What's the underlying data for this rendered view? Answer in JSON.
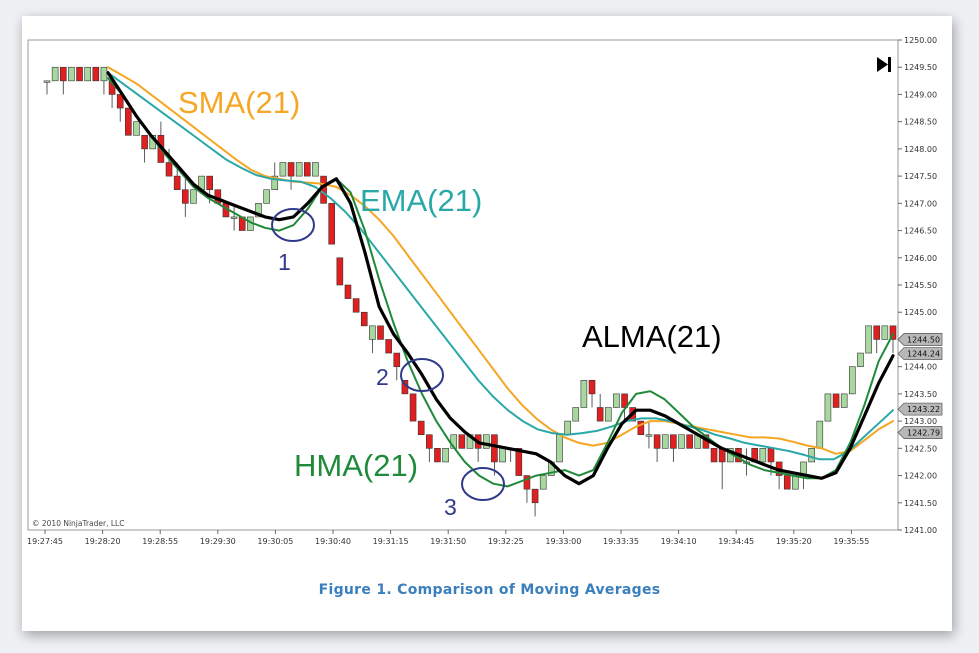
{
  "caption": "Figure 1. Comparison of Moving  Averages",
  "copyright": "© 2010 NinjaTrader, LLC",
  "end_icon": "skip-to-end-icon",
  "chart_data": {
    "type": "line",
    "y_ticks": [
      "1250.00",
      "1249.50",
      "1249.00",
      "1248.50",
      "1248.00",
      "1247.50",
      "1247.00",
      "1246.50",
      "1246.00",
      "1245.50",
      "1245.00",
      "1244.50",
      "1244.00",
      "1243.50",
      "1243.00",
      "1242.50",
      "1242.00",
      "1241.50",
      "1241.00"
    ],
    "ylim": [
      1241.0,
      1250.0
    ],
    "x_ticks": [
      "19:27:45",
      "19:28:20",
      "19:28:55",
      "19:29:30",
      "19:30:05",
      "19:30:40",
      "19:31:15",
      "19:31:50",
      "19:32:25",
      "19:33:00",
      "19:33:35",
      "19:34:10",
      "19:34:45",
      "19:35:20",
      "19:35:55"
    ],
    "bars": [
      [
        1249.25,
        1249.25,
        1249.0,
        1249.25
      ],
      [
        1249.25,
        1249.5,
        1249.25,
        1249.5
      ],
      [
        1249.5,
        1249.25,
        1249.0,
        1249.5
      ],
      [
        1249.25,
        1249.5,
        1249.25,
        1249.5
      ],
      [
        1249.5,
        1249.25,
        1249.25,
        1249.5
      ],
      [
        1249.25,
        1249.5,
        1249.25,
        1249.5
      ],
      [
        1249.5,
        1249.25,
        1249.25,
        1249.5
      ],
      [
        1249.25,
        1249.5,
        1249.0,
        1249.5
      ],
      [
        1249.25,
        1249.0,
        1248.75,
        1249.25
      ],
      [
        1249.0,
        1248.75,
        1248.5,
        1249.0
      ],
      [
        1248.75,
        1248.25,
        1248.25,
        1248.75
      ],
      [
        1248.25,
        1248.5,
        1248.25,
        1248.5
      ],
      [
        1248.25,
        1248.0,
        1247.75,
        1248.25
      ],
      [
        1248.0,
        1248.25,
        1248.0,
        1248.25
      ],
      [
        1248.25,
        1247.75,
        1247.75,
        1248.5
      ],
      [
        1247.75,
        1247.5,
        1247.5,
        1248.0
      ],
      [
        1247.5,
        1247.25,
        1247.25,
        1247.75
      ],
      [
        1247.25,
        1247.0,
        1246.75,
        1247.5
      ],
      [
        1247.0,
        1247.25,
        1247.0,
        1247.25
      ],
      [
        1247.25,
        1247.5,
        1247.25,
        1247.5
      ],
      [
        1247.5,
        1247.25,
        1247.0,
        1247.5
      ],
      [
        1247.25,
        1247.0,
        1247.0,
        1247.25
      ],
      [
        1247.0,
        1246.75,
        1246.75,
        1247.0
      ],
      [
        1246.75,
        1246.75,
        1246.5,
        1247.0
      ],
      [
        1246.75,
        1246.5,
        1246.5,
        1246.75
      ],
      [
        1246.5,
        1246.75,
        1246.5,
        1246.75
      ],
      [
        1246.75,
        1247.0,
        1246.75,
        1247.0
      ],
      [
        1247.0,
        1247.25,
        1247.0,
        1247.25
      ],
      [
        1247.25,
        1247.5,
        1247.25,
        1247.75
      ],
      [
        1247.5,
        1247.75,
        1247.5,
        1247.75
      ],
      [
        1247.75,
        1247.5,
        1247.25,
        1247.75
      ],
      [
        1247.5,
        1247.75,
        1247.5,
        1247.75
      ],
      [
        1247.75,
        1247.5,
        1247.5,
        1247.75
      ],
      [
        1247.5,
        1247.75,
        1247.5,
        1247.75
      ],
      [
        1247.5,
        1247.0,
        1247.0,
        1247.5
      ],
      [
        1247.0,
        1246.25,
        1246.25,
        1247.0
      ],
      [
        1246.0,
        1245.5,
        1245.5,
        1246.0
      ],
      [
        1245.5,
        1245.25,
        1245.25,
        1245.5
      ],
      [
        1245.25,
        1245.0,
        1245.0,
        1245.25
      ],
      [
        1245.0,
        1244.75,
        1244.75,
        1245.0
      ],
      [
        1244.5,
        1244.75,
        1244.25,
        1244.75
      ],
      [
        1244.75,
        1244.5,
        1244.5,
        1244.75
      ],
      [
        1244.5,
        1244.25,
        1244.25,
        1244.5
      ],
      [
        1244.25,
        1244.0,
        1243.75,
        1244.25
      ],
      [
        1243.75,
        1243.5,
        1243.5,
        1243.75
      ],
      [
        1243.5,
        1243.0,
        1243.0,
        1243.5
      ],
      [
        1243.0,
        1242.75,
        1242.75,
        1243.0
      ],
      [
        1242.75,
        1242.5,
        1242.25,
        1242.75
      ],
      [
        1242.5,
        1242.25,
        1242.25,
        1242.5
      ],
      [
        1242.25,
        1242.5,
        1242.25,
        1242.5
      ],
      [
        1242.5,
        1242.75,
        1242.5,
        1242.75
      ],
      [
        1242.75,
        1242.5,
        1242.5,
        1242.75
      ],
      [
        1242.5,
        1242.75,
        1242.5,
        1242.75
      ],
      [
        1242.75,
        1242.5,
        1242.25,
        1242.75
      ],
      [
        1242.5,
        1242.75,
        1242.5,
        1242.75
      ],
      [
        1242.75,
        1242.25,
        1242.0,
        1242.75
      ],
      [
        1242.25,
        1242.5,
        1242.25,
        1242.5
      ],
      [
        1242.5,
        1242.5,
        1242.25,
        1242.5
      ],
      [
        1242.5,
        1242.0,
        1242.0,
        1242.5
      ],
      [
        1242.0,
        1241.75,
        1241.5,
        1242.0
      ],
      [
        1241.75,
        1241.5,
        1241.25,
        1241.75
      ],
      [
        1241.75,
        1242.0,
        1241.75,
        1242.0
      ],
      [
        1242.0,
        1242.25,
        1242.0,
        1242.25
      ],
      [
        1242.25,
        1242.75,
        1242.25,
        1242.75
      ],
      [
        1242.75,
        1243.0,
        1242.75,
        1243.0
      ],
      [
        1243.0,
        1243.25,
        1243.0,
        1243.25
      ],
      [
        1243.25,
        1243.75,
        1243.25,
        1243.75
      ],
      [
        1243.75,
        1243.5,
        1243.25,
        1243.75
      ],
      [
        1243.25,
        1243.0,
        1243.0,
        1243.5
      ],
      [
        1243.0,
        1243.25,
        1243.0,
        1243.25
      ],
      [
        1243.25,
        1243.5,
        1243.25,
        1243.5
      ],
      [
        1243.5,
        1243.25,
        1243.0,
        1243.5
      ],
      [
        1243.25,
        1243.0,
        1243.0,
        1243.25
      ],
      [
        1243.0,
        1242.75,
        1242.75,
        1243.0
      ],
      [
        1242.75,
        1242.75,
        1242.5,
        1243.0
      ],
      [
        1242.75,
        1242.5,
        1242.25,
        1242.75
      ],
      [
        1242.5,
        1242.75,
        1242.5,
        1242.75
      ],
      [
        1242.75,
        1242.5,
        1242.25,
        1242.75
      ],
      [
        1242.5,
        1242.75,
        1242.5,
        1242.75
      ],
      [
        1242.75,
        1242.5,
        1242.5,
        1242.75
      ],
      [
        1242.5,
        1242.75,
        1242.5,
        1242.75
      ],
      [
        1242.75,
        1242.5,
        1242.5,
        1242.75
      ],
      [
        1242.5,
        1242.25,
        1242.25,
        1242.5
      ],
      [
        1242.5,
        1242.25,
        1241.75,
        1242.5
      ],
      [
        1242.25,
        1242.5,
        1242.25,
        1242.5
      ],
      [
        1242.5,
        1242.25,
        1242.25,
        1242.5
      ],
      [
        1242.25,
        1242.25,
        1242.0,
        1242.5
      ],
      [
        1242.5,
        1242.25,
        1242.25,
        1242.5
      ],
      [
        1242.25,
        1242.5,
        1242.25,
        1242.5
      ],
      [
        1242.5,
        1242.25,
        1242.0,
        1242.5
      ],
      [
        1242.25,
        1242.0,
        1241.75,
        1242.25
      ],
      [
        1242.0,
        1241.75,
        1241.75,
        1242.0
      ],
      [
        1241.75,
        1242.0,
        1241.75,
        1242.0
      ],
      [
        1242.0,
        1242.25,
        1241.75,
        1242.25
      ],
      [
        1242.25,
        1242.5,
        1242.25,
        1242.5
      ],
      [
        1242.5,
        1243.0,
        1242.5,
        1243.0
      ],
      [
        1243.0,
        1243.5,
        1243.0,
        1243.5
      ],
      [
        1243.5,
        1243.25,
        1243.25,
        1243.5
      ],
      [
        1243.25,
        1243.5,
        1243.25,
        1243.5
      ],
      [
        1243.5,
        1244.0,
        1243.5,
        1244.0
      ],
      [
        1244.0,
        1244.25,
        1244.0,
        1244.25
      ],
      [
        1244.25,
        1244.75,
        1244.25,
        1244.75
      ],
      [
        1244.75,
        1244.5,
        1244.25,
        1244.75
      ],
      [
        1244.5,
        1244.75,
        1244.5,
        1244.75
      ],
      [
        1244.75,
        1244.5,
        1244.25,
        1244.75
      ]
    ],
    "series": [
      {
        "name": "SMA(21)",
        "color": "#f5a623",
        "values": [
          1249.5,
          1249.35,
          1249.2,
          1249.0,
          1248.8,
          1248.6,
          1248.4,
          1248.2,
          1248.0,
          1247.8,
          1247.62,
          1247.5,
          1247.45,
          1247.4,
          1247.38,
          1247.36,
          1247.3,
          1247.15,
          1246.95,
          1246.7,
          1246.4,
          1246.05,
          1245.7,
          1245.35,
          1245.0,
          1244.65,
          1244.3,
          1243.95,
          1243.6,
          1243.3,
          1243.05,
          1242.85,
          1242.7,
          1242.6,
          1242.55,
          1242.6,
          1242.75,
          1242.9,
          1243.0,
          1243.0,
          1242.95,
          1242.9,
          1242.85,
          1242.8,
          1242.75,
          1242.7,
          1242.7,
          1242.68,
          1242.62,
          1242.55,
          1242.5,
          1242.4,
          1242.45,
          1242.65,
          1242.85,
          1243.0
        ]
      },
      {
        "name": "EMA(21)",
        "color": "#2aa8a8",
        "values": [
          1249.4,
          1249.2,
          1249.0,
          1248.8,
          1248.6,
          1248.4,
          1248.2,
          1248.0,
          1247.8,
          1247.65,
          1247.52,
          1247.45,
          1247.42,
          1247.4,
          1247.3,
          1247.1,
          1246.85,
          1246.55,
          1246.2,
          1245.85,
          1245.5,
          1245.15,
          1244.8,
          1244.45,
          1244.1,
          1243.75,
          1243.45,
          1243.2,
          1243.0,
          1242.85,
          1242.78,
          1242.75,
          1242.78,
          1242.82,
          1242.9,
          1243.0,
          1243.05,
          1243.05,
          1243.0,
          1242.92,
          1242.85,
          1242.75,
          1242.68,
          1242.6,
          1242.55,
          1242.5,
          1242.45,
          1242.38,
          1242.3,
          1242.3,
          1242.45,
          1242.7,
          1242.95,
          1243.2
        ]
      },
      {
        "name": "HMA(21)",
        "color": "#1f8a3a",
        "values": [
          1249.3,
          1249.0,
          1248.6,
          1248.25,
          1247.9,
          1247.6,
          1247.3,
          1247.1,
          1246.95,
          1246.8,
          1246.65,
          1246.55,
          1246.5,
          1246.6,
          1246.9,
          1247.3,
          1247.45,
          1247.2,
          1246.5,
          1245.6,
          1244.8,
          1244.1,
          1243.5,
          1243.0,
          1242.6,
          1242.25,
          1242.0,
          1241.85,
          1241.8,
          1241.9,
          1242.0,
          1242.05,
          1242.1,
          1242.0,
          1242.1,
          1242.6,
          1243.15,
          1243.5,
          1243.55,
          1243.4,
          1243.15,
          1242.9,
          1242.7,
          1242.5,
          1242.35,
          1242.2,
          1242.1,
          1242.05,
          1242.0,
          1241.95,
          1241.95,
          1242.1,
          1242.6,
          1243.3,
          1244.1,
          1244.6
        ]
      },
      {
        "name": "ALMA(21)",
        "color": "#000000",
        "values": [
          1249.4,
          1249.0,
          1248.6,
          1248.25,
          1247.95,
          1247.65,
          1247.35,
          1247.15,
          1247.05,
          1246.95,
          1246.85,
          1246.75,
          1246.7,
          1246.75,
          1247.0,
          1247.3,
          1247.45,
          1247.0,
          1246.1,
          1245.1,
          1244.6,
          1244.25,
          1243.85,
          1243.4,
          1243.05,
          1242.8,
          1242.6,
          1242.55,
          1242.5,
          1242.45,
          1242.4,
          1242.25,
          1242.0,
          1241.85,
          1242.0,
          1242.5,
          1242.95,
          1243.2,
          1243.2,
          1243.1,
          1242.95,
          1242.8,
          1242.65,
          1242.5,
          1242.4,
          1242.3,
          1242.2,
          1242.1,
          1242.05,
          1242.0,
          1241.95,
          1242.05,
          1242.5,
          1243.1,
          1243.7,
          1244.2
        ]
      }
    ],
    "annotations": [
      {
        "text": "SMA(21)",
        "color": "#f5a623"
      },
      {
        "text": "EMA(21)",
        "color": "#2aa8a8"
      },
      {
        "text": "ALMA(21)",
        "color": "#000000"
      },
      {
        "text": "HMA(21)",
        "color": "#1f8a3a"
      },
      {
        "text": "1"
      },
      {
        "text": "2"
      },
      {
        "text": "3"
      }
    ],
    "price_tags": [
      "1244.50",
      "1244.24",
      "1243.22",
      "1242.79"
    ]
  }
}
